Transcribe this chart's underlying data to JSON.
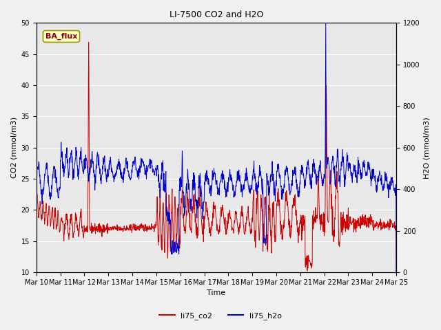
{
  "title": "LI-7500 CO2 and H2O",
  "ylabel_left": "CO2 (mmol/m3)",
  "ylabel_right": "H2O (mmol/m3)",
  "xlabel": "Time",
  "ylim_left": [
    10,
    50
  ],
  "ylim_right": [
    0,
    1200
  ],
  "yticks_left": [
    10,
    15,
    20,
    25,
    30,
    35,
    40,
    45,
    50
  ],
  "yticks_right": [
    0,
    200,
    400,
    600,
    800,
    1000,
    1200
  ],
  "xtick_labels": [
    "Mar 10",
    "Mar 11",
    "Mar 12",
    "Mar 13",
    "Mar 14",
    "Mar 15",
    "Mar 16",
    "Mar 17",
    "Mar 18",
    "Mar 19",
    "Mar 20",
    "Mar 21",
    "Mar 22",
    "Mar 23",
    "Mar 24",
    "Mar 25"
  ],
  "color_co2": "#cc0000",
  "color_h2o": "#0000cc",
  "label_co2": "li75_co2",
  "label_h2o": "li75_h2o",
  "annotation_text": "BA_flux",
  "annotation_bg": "#ffffcc",
  "annotation_border": "#999900",
  "background_color": "#e8e8e8",
  "grid_color": "#ffffff",
  "title_fontsize": 9,
  "axis_fontsize": 8,
  "tick_fontsize": 7,
  "legend_fontsize": 8,
  "linewidth": 0.7
}
